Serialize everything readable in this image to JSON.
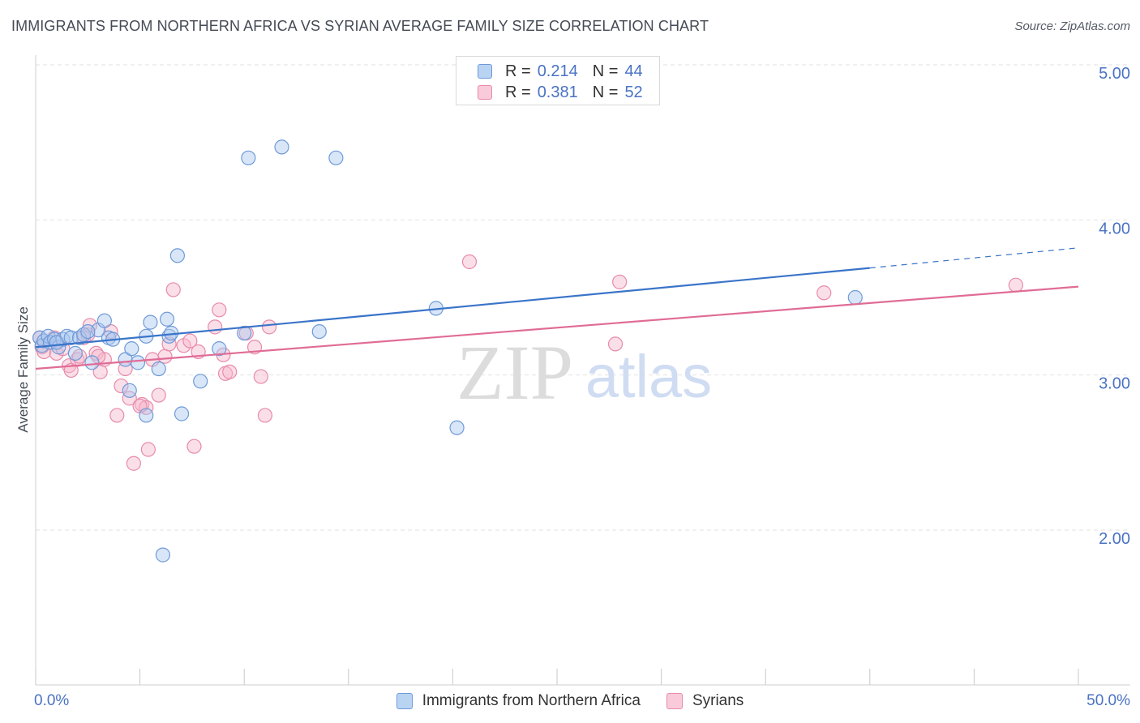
{
  "title": "IMMIGRANTS FROM NORTHERN AFRICA VS SYRIAN AVERAGE FAMILY SIZE CORRELATION CHART",
  "source": "Source: ZipAtlas.com",
  "watermark": {
    "zip": "ZIP",
    "atlas": "atlas"
  },
  "colors": {
    "blue_fill": "#a9c8f0",
    "blue_stroke": "#6f9ad8",
    "blue_line": "#3a74c9",
    "pink_fill": "#f6b9cd",
    "pink_stroke": "#e78bab",
    "pink_line": "#e06c96",
    "grid": "#e2e2e2",
    "axis_text": "#4a72c4"
  },
  "legend_top": [
    {
      "r_label": "R =",
      "r_value": "0.214",
      "n_label": "N =",
      "n_value": "44"
    },
    {
      "r_label": "R =",
      "r_value": "0.381",
      "n_label": "N =",
      "n_value": "52"
    }
  ],
  "chart_data": {
    "type": "scatter",
    "title": "IMMIGRANTS FROM NORTHERN AFRICA VS SYRIAN AVERAGE FAMILY SIZE CORRELATION CHART",
    "xlabel": "",
    "ylabel": "Average Family Size",
    "xlim": [
      0,
      50
    ],
    "ylim": [
      1.0,
      5.15
    ],
    "x_tick_labels": [
      "0.0%",
      "50.0%"
    ],
    "y_ticks": [
      2.0,
      3.0,
      4.0,
      5.0
    ],
    "y_tick_labels": [
      "2.00",
      "3.00",
      "4.00",
      "5.00"
    ],
    "grid": true,
    "legend_position": "top-center and bottom",
    "series": [
      {
        "name": "Immigrants from Northern Africa",
        "color": "#a9c8f0",
        "trend": {
          "x": [
            0,
            40
          ],
          "y": [
            3.18,
            3.69
          ],
          "dashed_extension_to_x": 50,
          "dashed_end_y": 3.82
        },
        "points": [
          [
            0.2,
            3.24
          ],
          [
            0.3,
            3.19
          ],
          [
            0.4,
            3.22
          ],
          [
            0.6,
            3.25
          ],
          [
            0.7,
            3.21
          ],
          [
            0.9,
            3.23
          ],
          [
            1.1,
            3.18
          ],
          [
            1.3,
            3.23
          ],
          [
            1.5,
            3.25
          ],
          [
            1.7,
            3.24
          ],
          [
            1.9,
            3.14
          ],
          [
            2.1,
            3.24
          ],
          [
            2.3,
            3.26
          ],
          [
            2.7,
            3.08
          ],
          [
            3.0,
            3.29
          ],
          [
            3.3,
            3.35
          ],
          [
            3.5,
            3.24
          ],
          [
            3.7,
            3.23
          ],
          [
            4.3,
            3.1
          ],
          [
            4.5,
            2.9
          ],
          [
            4.6,
            3.17
          ],
          [
            4.9,
            3.08
          ],
          [
            5.3,
            3.25
          ],
          [
            5.3,
            2.74
          ],
          [
            5.5,
            3.34
          ],
          [
            5.9,
            3.04
          ],
          [
            6.1,
            1.84
          ],
          [
            6.3,
            3.36
          ],
          [
            6.4,
            3.25
          ],
          [
            6.5,
            3.27
          ],
          [
            6.8,
            3.77
          ],
          [
            7.0,
            2.75
          ],
          [
            7.9,
            2.96
          ],
          [
            8.8,
            3.17
          ],
          [
            10.0,
            3.27
          ],
          [
            10.2,
            4.4
          ],
          [
            11.8,
            4.47
          ],
          [
            13.6,
            3.28
          ],
          [
            14.4,
            4.4
          ],
          [
            19.2,
            3.43
          ],
          [
            20.2,
            2.66
          ],
          [
            39.3,
            3.5
          ],
          [
            1.0,
            3.21
          ],
          [
            2.5,
            3.28
          ]
        ]
      },
      {
        "name": "Syrians",
        "color": "#f6b9cd",
        "trend": {
          "x": [
            0,
            50
          ],
          "y": [
            3.04,
            3.57
          ]
        },
        "points": [
          [
            0.2,
            3.24
          ],
          [
            0.3,
            3.18
          ],
          [
            0.4,
            3.15
          ],
          [
            0.7,
            3.21
          ],
          [
            0.9,
            3.24
          ],
          [
            1.0,
            3.14
          ],
          [
            1.3,
            3.17
          ],
          [
            1.6,
            3.06
          ],
          [
            1.7,
            3.03
          ],
          [
            2.0,
            3.1
          ],
          [
            2.3,
            3.24
          ],
          [
            2.5,
            3.26
          ],
          [
            2.6,
            3.32
          ],
          [
            2.9,
            3.14
          ],
          [
            3.1,
            3.02
          ],
          [
            3.3,
            3.1
          ],
          [
            3.6,
            3.28
          ],
          [
            3.9,
            2.74
          ],
          [
            4.1,
            2.93
          ],
          [
            4.3,
            3.04
          ],
          [
            4.5,
            2.85
          ],
          [
            4.7,
            2.43
          ],
          [
            5.1,
            2.81
          ],
          [
            5.3,
            2.79
          ],
          [
            5.4,
            2.52
          ],
          [
            5.6,
            3.1
          ],
          [
            5.9,
            2.87
          ],
          [
            6.2,
            3.12
          ],
          [
            6.4,
            3.2
          ],
          [
            6.6,
            3.55
          ],
          [
            7.1,
            3.19
          ],
          [
            7.4,
            3.22
          ],
          [
            7.6,
            2.54
          ],
          [
            7.8,
            3.15
          ],
          [
            8.6,
            3.31
          ],
          [
            8.8,
            3.42
          ],
          [
            9.0,
            3.13
          ],
          [
            9.1,
            3.01
          ],
          [
            9.3,
            3.02
          ],
          [
            10.1,
            3.27
          ],
          [
            10.5,
            3.18
          ],
          [
            10.8,
            2.99
          ],
          [
            11.0,
            2.74
          ],
          [
            11.2,
            3.31
          ],
          [
            20.8,
            3.73
          ],
          [
            27.8,
            3.2
          ],
          [
            28.0,
            3.6
          ],
          [
            37.8,
            3.53
          ],
          [
            47.0,
            3.58
          ],
          [
            2.1,
            3.12
          ],
          [
            5.0,
            2.8
          ],
          [
            3.0,
            3.12
          ]
        ]
      }
    ]
  },
  "legend_bottom": [
    {
      "label": "Immigrants from Northern Africa"
    },
    {
      "label": "Syrians"
    }
  ]
}
